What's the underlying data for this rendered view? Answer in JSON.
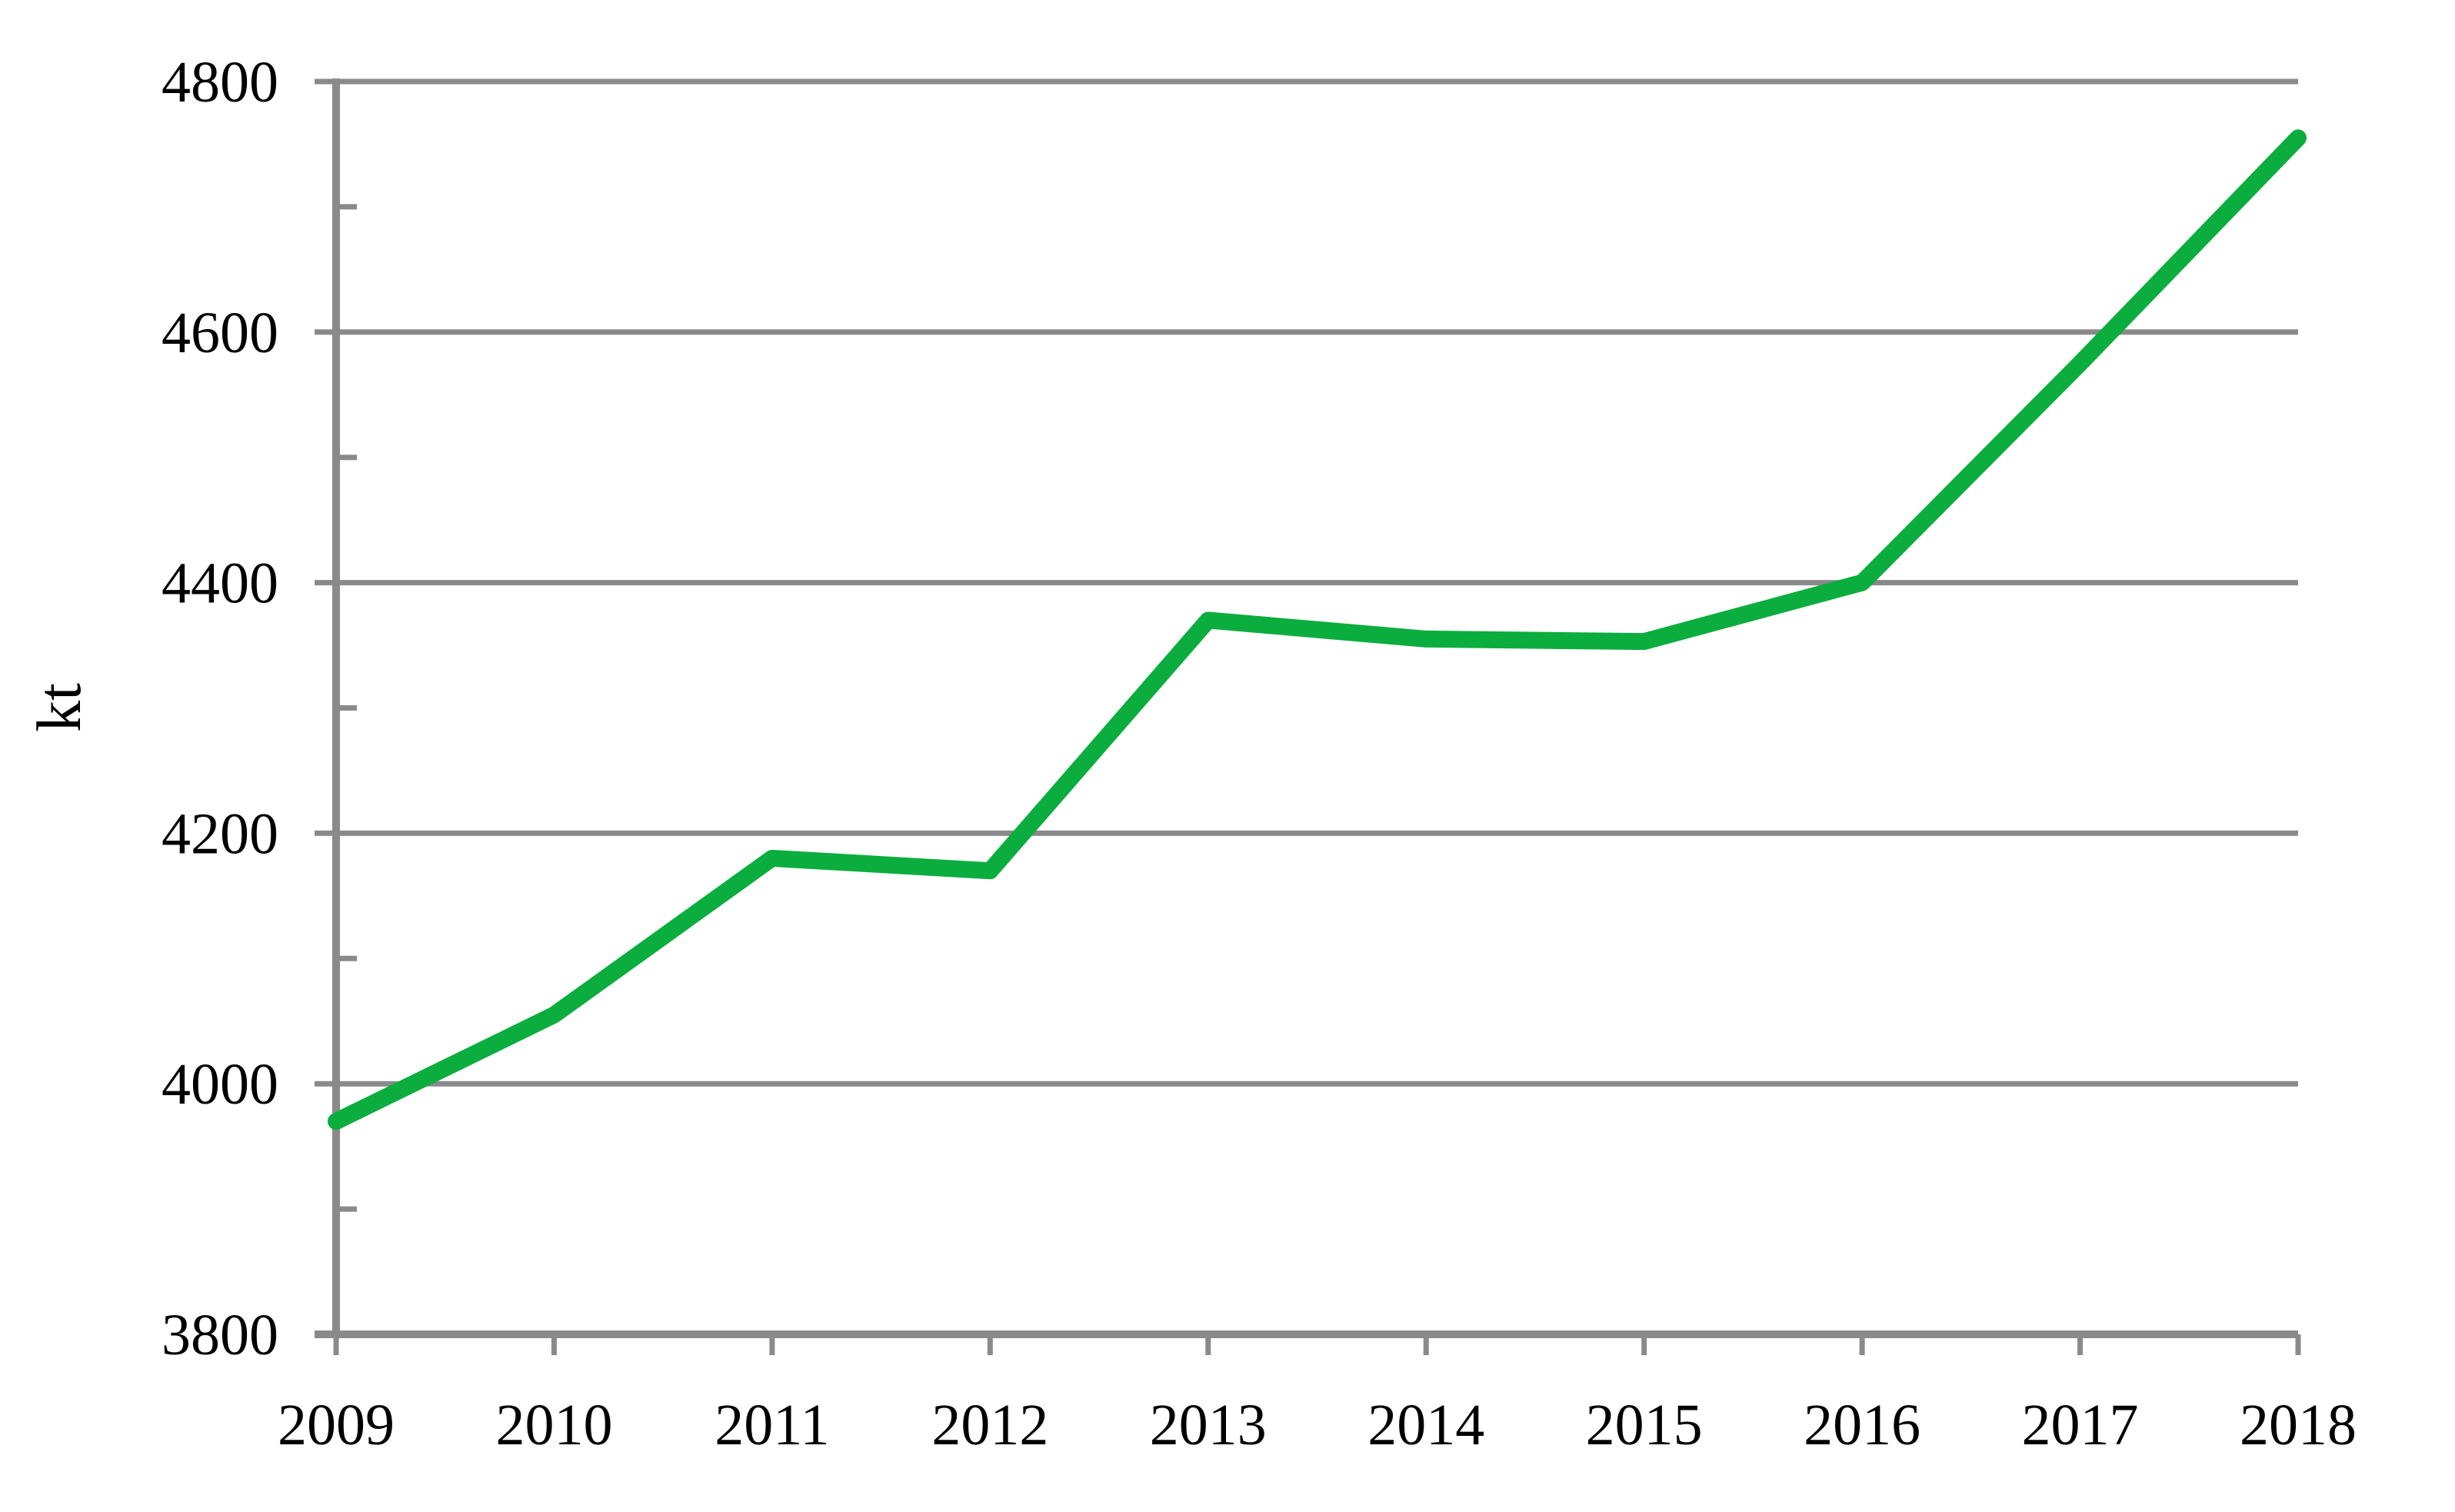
{
  "chart_data": {
    "type": "line",
    "title": "",
    "xlabel": "",
    "ylabel": "kt",
    "categories": [
      "2009",
      "2010",
      "2011",
      "2012",
      "2013",
      "2014",
      "2015",
      "2016",
      "2017",
      "2018"
    ],
    "series": [
      {
        "name": "kt",
        "color": "#0bad3e",
        "values": [
          3970,
          4055,
          4180,
          4170,
          4370,
          4355,
          4353,
          4400,
          4575,
          4755
        ]
      }
    ],
    "ylim": [
      3800,
      4800
    ],
    "ytick_step": 200,
    "ytick_labels": [
      "3800",
      "4000",
      "4200",
      "4400",
      "4600",
      "4800"
    ],
    "y_minor_tick_step": 100,
    "grid": "horizontal-major",
    "legend_position": "none",
    "axis_color": "#8a8a8a",
    "label_color": "#000000",
    "background": "#ffffff"
  }
}
